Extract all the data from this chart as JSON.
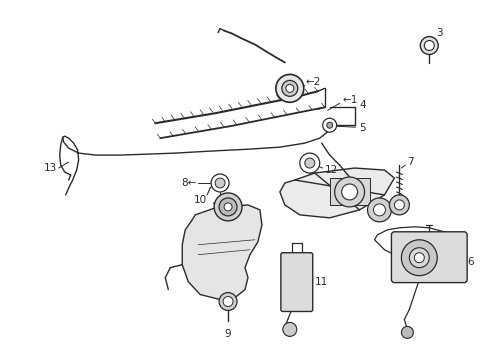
{
  "bg_color": "#ffffff",
  "line_color": "#2a2a2a",
  "label_color": "#000000",
  "figsize": [
    4.89,
    3.6
  ],
  "dpi": 100,
  "lw": 1.0,
  "label_fs": 7.5
}
